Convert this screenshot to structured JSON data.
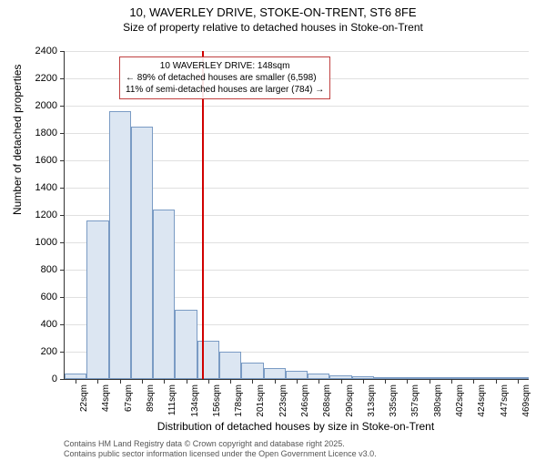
{
  "title_main": "10, WAVERLEY DRIVE, STOKE-ON-TRENT, ST6 8FE",
  "title_sub": "Size of property relative to detached houses in Stoke-on-Trent",
  "y_axis_title": "Number of detached properties",
  "x_axis_title": "Distribution of detached houses by size in Stoke-on-Trent",
  "chart": {
    "type": "histogram",
    "ylim": [
      0,
      2400
    ],
    "ytick_step": 200,
    "bar_fill": "#dce6f2",
    "bar_border": "#7a9bc4",
    "grid_color": "#e0e0e0",
    "background_color": "#ffffff",
    "marker_color": "#d00000",
    "marker_x_value": 148,
    "bins": [
      {
        "label": "22sqm",
        "value": 40
      },
      {
        "label": "44sqm",
        "value": 1160
      },
      {
        "label": "67sqm",
        "value": 1960
      },
      {
        "label": "89sqm",
        "value": 1850
      },
      {
        "label": "111sqm",
        "value": 1240
      },
      {
        "label": "134sqm",
        "value": 510
      },
      {
        "label": "156sqm",
        "value": 280
      },
      {
        "label": "178sqm",
        "value": 200
      },
      {
        "label": "201sqm",
        "value": 120
      },
      {
        "label": "223sqm",
        "value": 80
      },
      {
        "label": "246sqm",
        "value": 60
      },
      {
        "label": "268sqm",
        "value": 40
      },
      {
        "label": "290sqm",
        "value": 30
      },
      {
        "label": "313sqm",
        "value": 20
      },
      {
        "label": "335sqm",
        "value": 15
      },
      {
        "label": "357sqm",
        "value": 12
      },
      {
        "label": "380sqm",
        "value": 10
      },
      {
        "label": "402sqm",
        "value": 8
      },
      {
        "label": "424sqm",
        "value": 6
      },
      {
        "label": "447sqm",
        "value": 5
      },
      {
        "label": "469sqm",
        "value": 4
      }
    ]
  },
  "annotation": {
    "line1": "10 WAVERLEY DRIVE: 148sqm",
    "line2": "← 89% of detached houses are smaller (6,598)",
    "line3": "11% of semi-detached houses are larger (784) →",
    "border_color": "#c04040"
  },
  "footer_line1": "Contains HM Land Registry data © Crown copyright and database right 2025.",
  "footer_line2": "Contains public sector information licensed under the Open Government Licence v3.0."
}
